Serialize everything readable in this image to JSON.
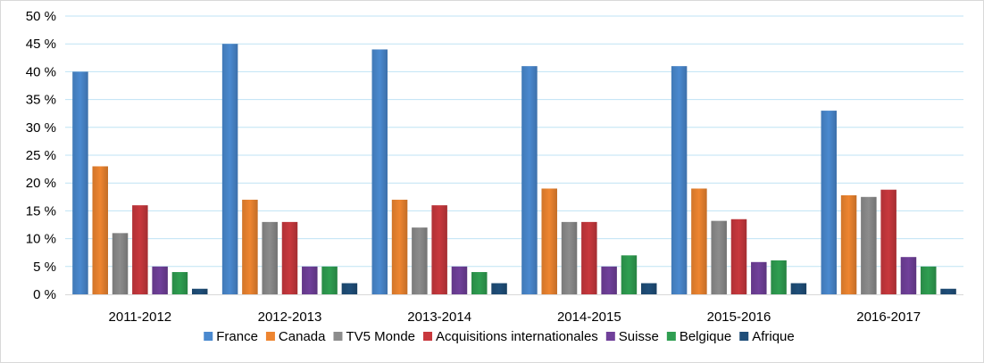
{
  "chart_data": {
    "type": "bar",
    "categories": [
      "2011-2012",
      "2012-2013",
      "2013-2014",
      "2014-2015",
      "2015-2016",
      "2016-2017"
    ],
    "series": [
      {
        "name": "France",
        "color": "#4a89cf",
        "values": [
          40,
          45,
          44,
          41,
          41,
          33
        ]
      },
      {
        "name": "Canada",
        "color": "#ee8530",
        "values": [
          23,
          17,
          17,
          19,
          19,
          17.8
        ]
      },
      {
        "name": "TV5 Monde",
        "color": "#8c8c8c",
        "values": [
          11,
          13,
          12,
          13,
          13.2,
          17.5
        ]
      },
      {
        "name": "Acquisitions internationales",
        "color": "#c8383d",
        "values": [
          16,
          13,
          16,
          13,
          13.5,
          18.8
        ]
      },
      {
        "name": "Suisse",
        "color": "#70409a",
        "values": [
          5,
          5,
          5,
          5,
          5.8,
          6.7
        ]
      },
      {
        "name": "Belgique",
        "color": "#2f9e51",
        "values": [
          4,
          5,
          4,
          7,
          6.1,
          5
        ]
      },
      {
        "name": "Afrique",
        "color": "#1f4e79",
        "values": [
          1,
          2,
          2,
          2,
          2,
          1
        ]
      }
    ],
    "y_ticks": [
      "0 %",
      "5 %",
      "10 %",
      "15 %",
      "20 %",
      "25 %",
      "30 %",
      "35 %",
      "40 %",
      "45 %",
      "50 %"
    ],
    "ylim": [
      0,
      50
    ],
    "grid": true,
    "gridline_color": "#bfe3f4",
    "legend_position": "bottom",
    "title": "",
    "xlabel": "",
    "ylabel": ""
  }
}
